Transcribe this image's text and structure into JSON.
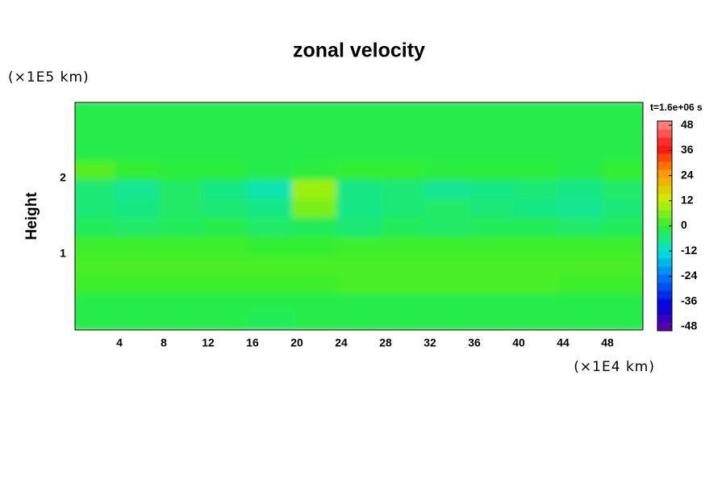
{
  "chart_data": {
    "type": "heatmap",
    "title": "zonal velocity",
    "ylabel": "Height",
    "yunit": "(×1E5 km)",
    "xunit": "(×1E4 km)",
    "time_label": "t=1.6e+06 s",
    "x": [
      2,
      6,
      10,
      14,
      18,
      22,
      26,
      30,
      34,
      38,
      42,
      46,
      50
    ],
    "y": [
      0.125,
      0.375,
      0.625,
      0.875,
      1.125,
      1.375,
      1.625,
      1.875,
      2.125,
      2.375,
      2.625,
      2.875
    ],
    "z": [
      [
        -2,
        -2,
        -2,
        -2,
        -3,
        -2,
        -2,
        -2,
        -2,
        -2,
        -2,
        -2,
        -2
      ],
      [
        -2,
        -2,
        -2,
        -2,
        -2,
        -2,
        -2,
        -2,
        -2,
        -2,
        -2,
        -2,
        -2
      ],
      [
        1,
        1,
        1,
        1,
        1,
        1,
        2,
        2,
        2,
        2,
        2,
        1,
        1
      ],
      [
        2,
        2,
        2,
        2,
        2,
        2,
        2,
        2,
        2,
        2,
        2,
        2,
        2
      ],
      [
        1,
        1,
        1,
        1,
        0,
        0,
        1,
        1,
        1,
        1,
        1,
        1,
        1
      ],
      [
        -3,
        -4,
        -3,
        -2,
        -4,
        -3,
        -5,
        -3,
        -4,
        -3,
        -3,
        -4,
        -3
      ],
      [
        -5,
        -6,
        -4,
        -5,
        -6,
        6,
        -6,
        -5,
        -4,
        -5,
        -6,
        -7,
        -5
      ],
      [
        -5,
        -7,
        -4,
        -6,
        -9,
        9,
        -6,
        -5,
        -7,
        -6,
        -5,
        -6,
        -4
      ],
      [
        3,
        0,
        -1,
        -1,
        -2,
        -1,
        0,
        0,
        -1,
        -1,
        -1,
        -2,
        0
      ],
      [
        -2,
        -2,
        -2,
        -2,
        -2,
        -2,
        -2,
        -2,
        -2,
        -2,
        -2,
        -2,
        -2
      ],
      [
        -2,
        -2,
        -2,
        -2,
        -2,
        -2,
        -2,
        -2,
        -2,
        -2,
        -2,
        -2,
        -2
      ],
      [
        -2,
        -2,
        -2,
        -2,
        -2,
        -2,
        -2,
        -2,
        -2,
        -2,
        -2,
        -2,
        -2
      ]
    ],
    "xlim": [
      0,
      51.2
    ],
    "ylim": [
      0,
      3
    ],
    "xticks": [
      4,
      8,
      12,
      16,
      20,
      24,
      28,
      32,
      36,
      40,
      44,
      48
    ],
    "yticks": [
      1,
      2
    ],
    "clim": [
      -50,
      50
    ],
    "cticks": [
      48,
      36,
      24,
      12,
      0,
      -12,
      -24,
      -36,
      -48
    ],
    "colormap": [
      "#6a00a8",
      "#0000e0",
      "#0070ff",
      "#00e0e0",
      "#30ee30",
      "#c8f000",
      "#ff9a00",
      "#ff1010",
      "#ff9090"
    ]
  }
}
